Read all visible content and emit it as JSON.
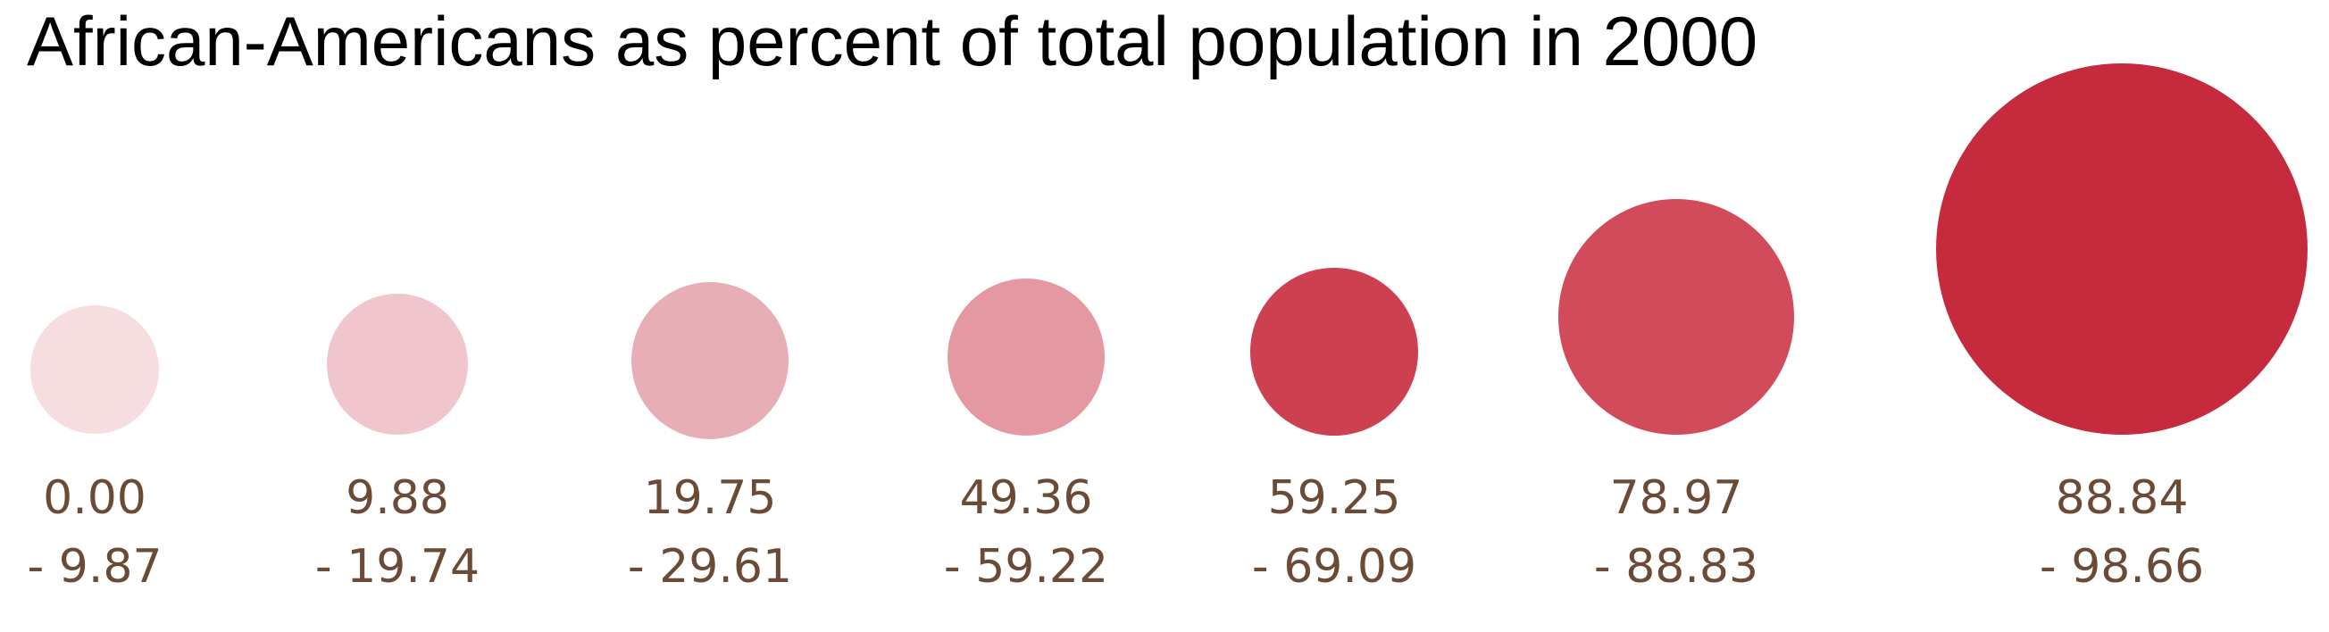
{
  "chart_data": {
    "type": "bubble-legend",
    "title": "African-Americans as percent of total population in 2000",
    "classes": [
      {
        "from": "0.00",
        "to": "- 9.87",
        "color": "#f5dde0",
        "size_rank": 1
      },
      {
        "from": "9.88",
        "to": "- 19.74",
        "color": "#f0c5cb",
        "size_rank": 2
      },
      {
        "from": "19.75",
        "to": "- 29.61",
        "color": "#e8aeb5",
        "size_rank": 3
      },
      {
        "from": "49.36",
        "to": "- 59.22",
        "color": "#e499a2",
        "size_rank": 4
      },
      {
        "from": "59.25",
        "to": "- 69.09",
        "color": "#cd4050",
        "size_rank": 5
      },
      {
        "from": "78.97",
        "to": "- 88.83",
        "color": "#d24b5b",
        "size_rank": 6
      },
      {
        "from": "88.84",
        "to": "- 98.66",
        "color": "#c62a3d",
        "size_rank": 7
      }
    ],
    "label_color": "#6b4a36"
  }
}
